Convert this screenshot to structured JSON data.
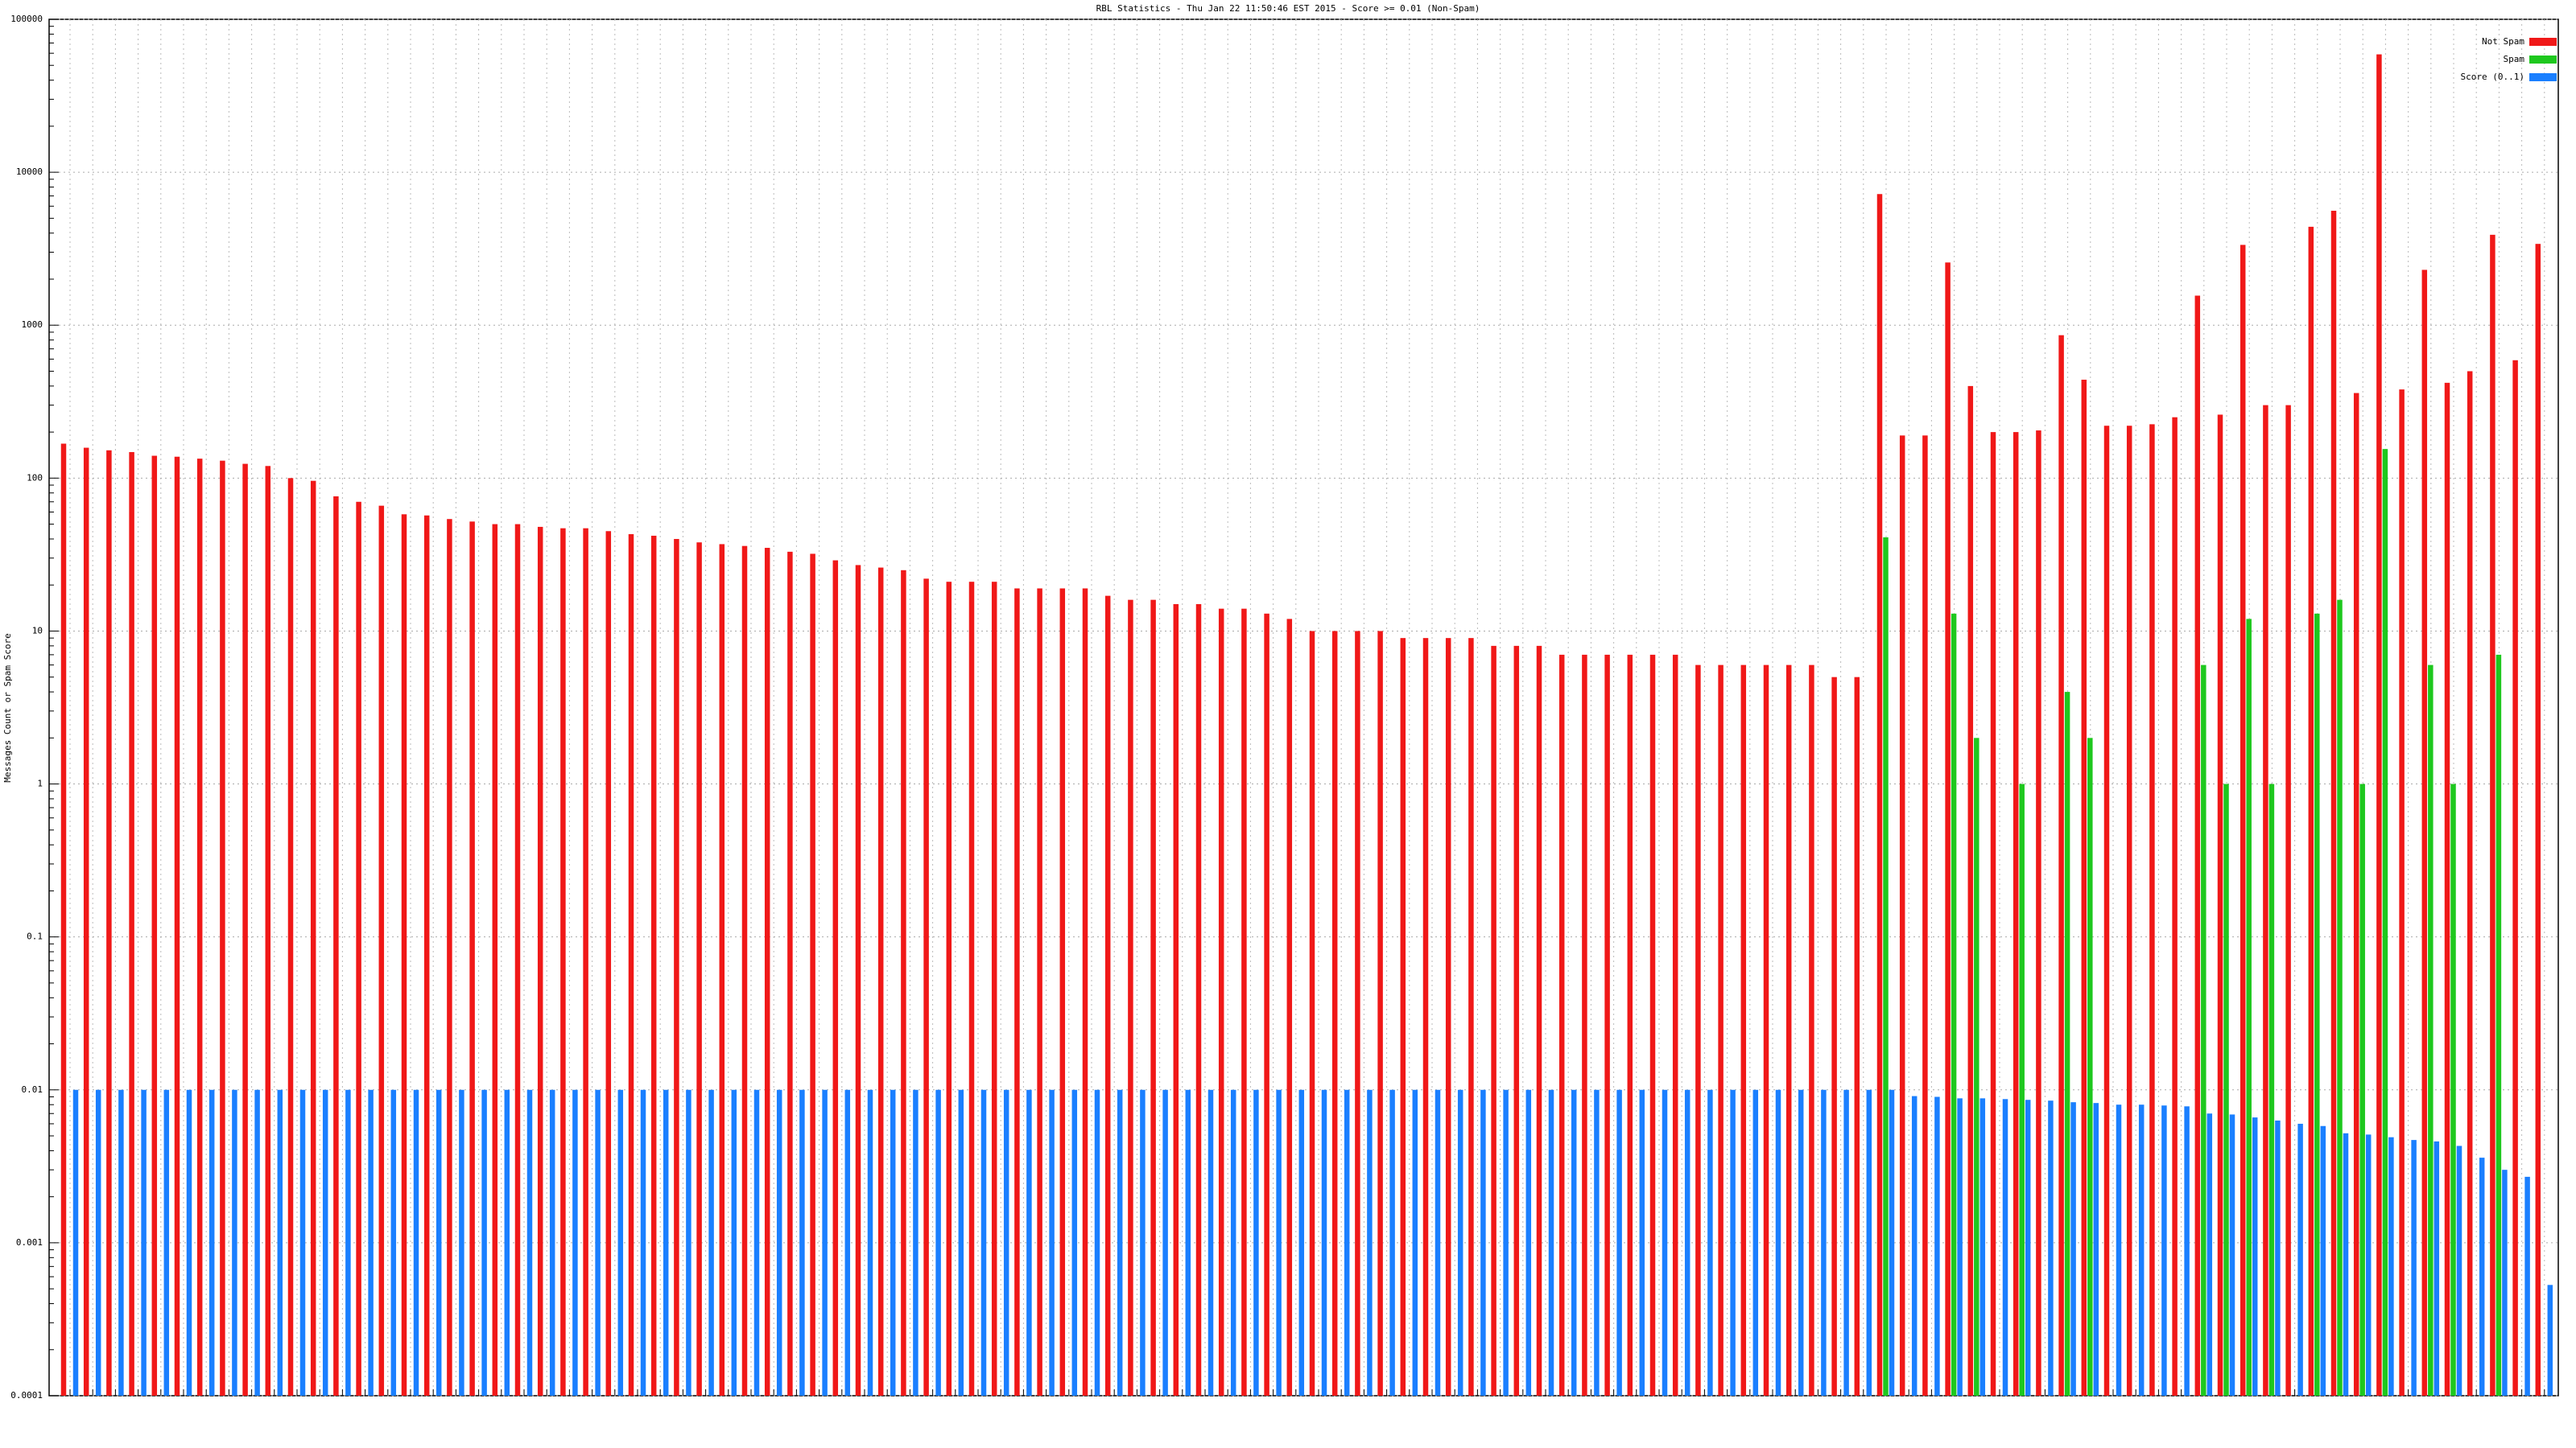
{
  "chart_data": {
    "type": "bar",
    "title": "RBL Statistics - Thu Jan 22 11:50:46 EST 2015 - Score >= 0.01 (Non-Spam)",
    "y_label": "Messages Count or Spam Score",
    "log_y": true,
    "grid": true,
    "legend": "top-right",
    "categories": [
      null,
      null,
      null,
      null,
      null,
      null,
      null,
      null,
      null,
      null,
      null,
      null,
      null,
      null,
      null,
      null,
      null,
      null,
      null,
      null,
      null,
      null,
      null,
      null,
      null,
      null,
      null,
      null,
      null,
      null,
      null,
      null,
      null,
      null,
      null,
      null,
      null,
      null,
      null,
      null,
      null,
      null,
      null,
      null,
      null,
      null,
      null,
      null,
      null,
      null,
      null,
      null,
      null,
      null,
      null,
      null,
      null,
      null,
      null,
      null,
      null,
      null,
      null,
      null,
      null,
      null,
      null,
      null,
      null,
      null,
      null,
      null,
      null,
      null,
      null,
      null,
      null,
      null,
      null,
      null,
      null,
      null,
      null,
      null,
      null,
      null,
      null,
      null,
      null,
      null,
      null,
      null,
      null,
      null,
      null,
      null,
      null,
      null,
      null,
      null,
      null,
      null,
      null,
      null,
      null,
      null,
      null,
      null,
      null,
      null
    ],
    "ylim": [
      0.0001,
      100000
    ],
    "yticks": [
      0.0001,
      0.001,
      0.01,
      0.1,
      1,
      10,
      100,
      1000,
      10000,
      100000
    ],
    "series": [
      {
        "name": "Not Spam",
        "color": "#f01818",
        "values": [
          168,
          158,
          152,
          148,
          140,
          138,
          134,
          130,
          124,
          120,
          100,
          96,
          76,
          70,
          66,
          58,
          57,
          54,
          52,
          50,
          50,
          48,
          47,
          47,
          45,
          43,
          42,
          40,
          38,
          37,
          36,
          35,
          33,
          32,
          29,
          27,
          26,
          25,
          22,
          21,
          21,
          21,
          19,
          19,
          19,
          19,
          17,
          16,
          16,
          15,
          15,
          14,
          14,
          13,
          12,
          10,
          10,
          10,
          10,
          9,
          9,
          9,
          9,
          8,
          8,
          8,
          7,
          7,
          7,
          7,
          7,
          7,
          6,
          6,
          6,
          6,
          6,
          6,
          5,
          5,
          7200,
          190,
          190,
          2570,
          400,
          200,
          200,
          205,
          860,
          440,
          220,
          220,
          225,
          250,
          1560,
          260,
          3350,
          300,
          300,
          4400,
          5600,
          360,
          59000,
          380,
          2300,
          420,
          500,
          3900,
          590,
          3400
        ]
      },
      {
        "name": "Spam",
        "color": "#1ec81e",
        "values": [
          null,
          null,
          null,
          null,
          null,
          null,
          null,
          null,
          null,
          null,
          null,
          null,
          null,
          null,
          null,
          null,
          null,
          null,
          null,
          null,
          null,
          null,
          null,
          null,
          null,
          null,
          null,
          null,
          null,
          null,
          null,
          null,
          null,
          null,
          null,
          null,
          null,
          null,
          null,
          null,
          null,
          null,
          null,
          null,
          null,
          null,
          null,
          null,
          null,
          null,
          null,
          null,
          null,
          null,
          null,
          null,
          null,
          null,
          null,
          null,
          null,
          null,
          null,
          null,
          null,
          null,
          null,
          null,
          null,
          null,
          null,
          null,
          null,
          null,
          null,
          null,
          null,
          null,
          null,
          null,
          41,
          null,
          null,
          13,
          2,
          null,
          1,
          null,
          4,
          2,
          null,
          null,
          null,
          null,
          6,
          1,
          12,
          1,
          null,
          13,
          16,
          1,
          155,
          null,
          6,
          1,
          null,
          7,
          null,
          null
        ]
      },
      {
        "name": "Score (0..1)",
        "color": "#1a7fff",
        "values": [
          0.01,
          0.01,
          0.01,
          0.01,
          0.01,
          0.01,
          0.01,
          0.01,
          0.01,
          0.01,
          0.01,
          0.01,
          0.01,
          0.01,
          0.01,
          0.01,
          0.01,
          0.01,
          0.01,
          0.01,
          0.01,
          0.01,
          0.01,
          0.01,
          0.01,
          0.01,
          0.01,
          0.01,
          0.01,
          0.01,
          0.01,
          0.01,
          0.01,
          0.01,
          0.01,
          0.01,
          0.01,
          0.01,
          0.01,
          0.01,
          0.01,
          0.01,
          0.01,
          0.01,
          0.01,
          0.01,
          0.01,
          0.01,
          0.01,
          0.01,
          0.01,
          0.01,
          0.01,
          0.01,
          0.01,
          0.01,
          0.01,
          0.01,
          0.01,
          0.01,
          0.01,
          0.01,
          0.01,
          0.01,
          0.01,
          0.01,
          0.01,
          0.01,
          0.01,
          0.01,
          0.01,
          0.01,
          0.01,
          0.01,
          0.01,
          0.01,
          0.01,
          0.01,
          0.01,
          0.01,
          0.01,
          0.0091,
          0.009,
          0.0088,
          0.0088,
          0.0087,
          0.0086,
          0.0085,
          0.0083,
          0.0082,
          0.008,
          0.008,
          0.0079,
          0.0078,
          0.007,
          0.0069,
          0.0066,
          0.0063,
          0.006,
          0.0058,
          0.0052,
          0.0051,
          0.0049,
          0.0047,
          0.0046,
          0.0043,
          0.0036,
          0.003,
          0.0027,
          0.00053
        ]
      }
    ]
  }
}
